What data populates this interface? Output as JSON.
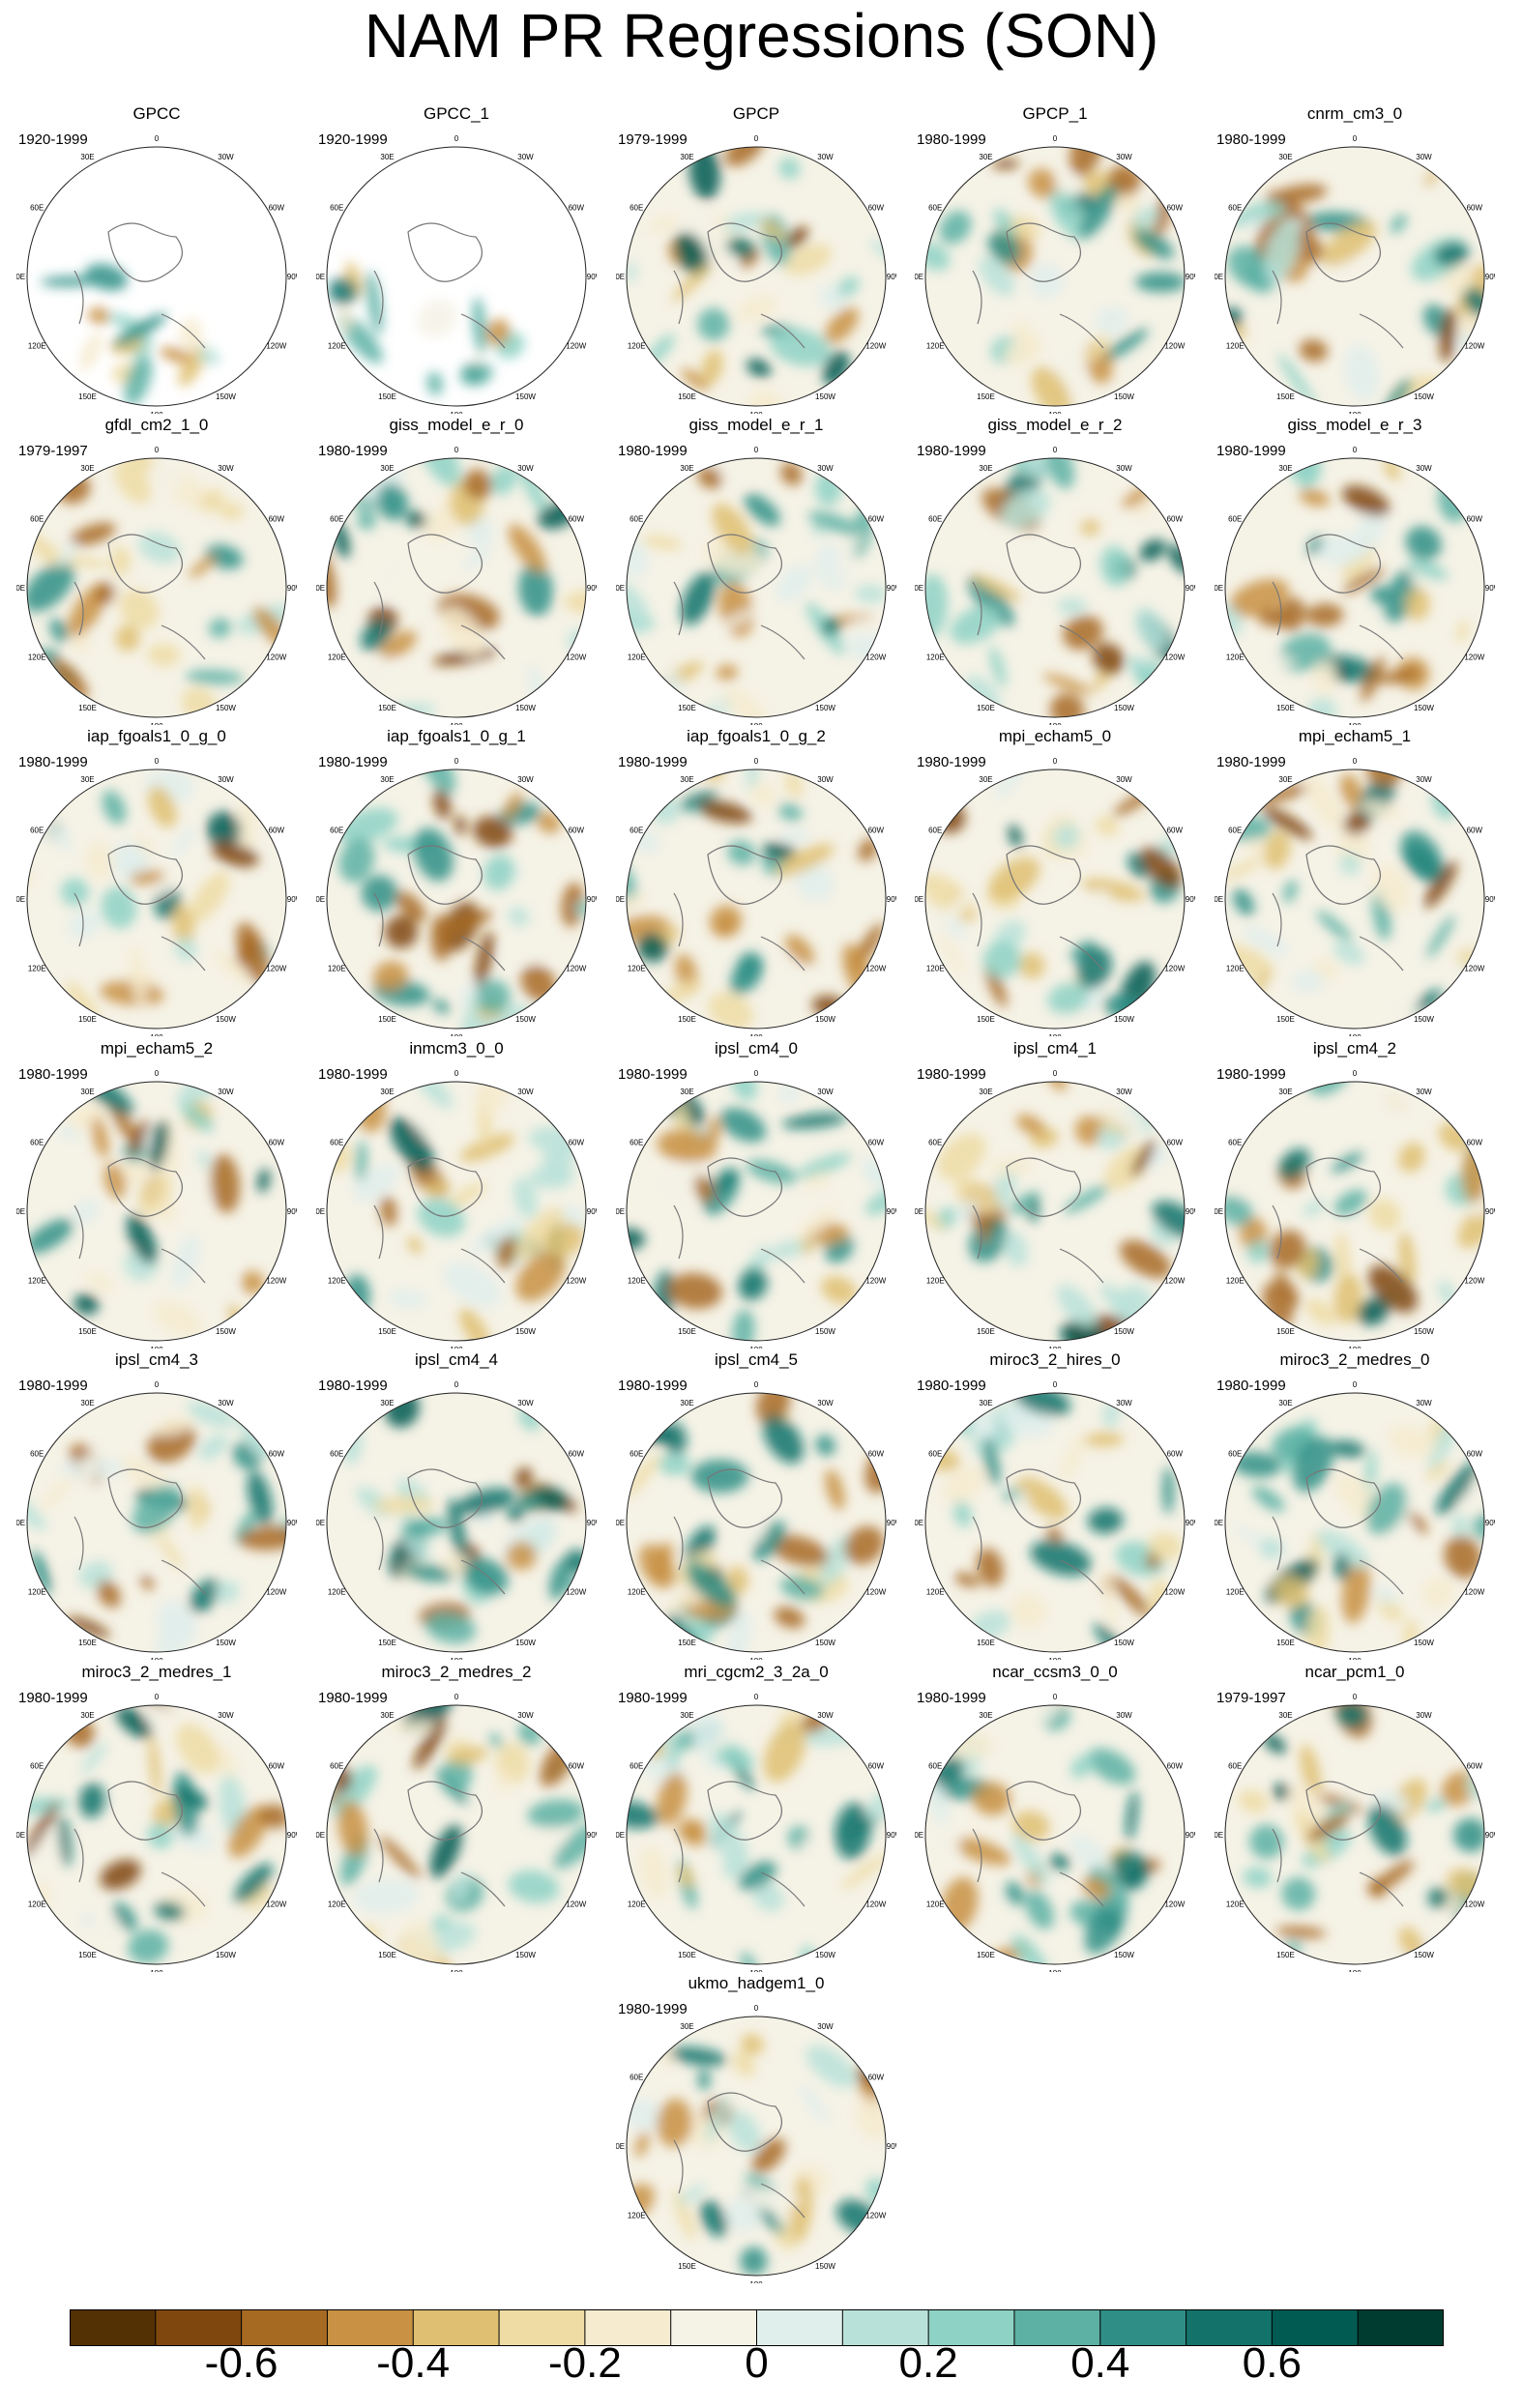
{
  "title": "NAM PR Regressions (SON)",
  "chart_data": {
    "type": "heatmap",
    "projection": "north polar stereographic",
    "longitude_labels": [
      "180",
      "150E",
      "120E",
      "90E",
      "60E",
      "30E",
      "0",
      "30W",
      "60W",
      "90W",
      "120W",
      "150W"
    ],
    "panels": [
      {
        "name": "GPCC",
        "period": "1920-1999",
        "masked": true
      },
      {
        "name": "GPCC_1",
        "period": "1920-1999",
        "masked": true
      },
      {
        "name": "GPCP",
        "period": "1979-1999"
      },
      {
        "name": "GPCP_1",
        "period": "1980-1999"
      },
      {
        "name": "cnrm_cm3_0",
        "period": "1980-1999"
      },
      {
        "name": "gfdl_cm2_1_0",
        "period": "1979-1997"
      },
      {
        "name": "giss_model_e_r_0",
        "period": "1980-1999"
      },
      {
        "name": "giss_model_e_r_1",
        "period": "1980-1999"
      },
      {
        "name": "giss_model_e_r_2",
        "period": "1980-1999"
      },
      {
        "name": "giss_model_e_r_3",
        "period": "1980-1999"
      },
      {
        "name": "iap_fgoals1_0_g_0",
        "period": "1980-1999"
      },
      {
        "name": "iap_fgoals1_0_g_1",
        "period": "1980-1999"
      },
      {
        "name": "iap_fgoals1_0_g_2",
        "period": "1980-1999"
      },
      {
        "name": "mpi_echam5_0",
        "period": "1980-1999"
      },
      {
        "name": "mpi_echam5_1",
        "period": "1980-1999"
      },
      {
        "name": "mpi_echam5_2",
        "period": "1980-1999"
      },
      {
        "name": "inmcm3_0_0",
        "period": "1980-1999"
      },
      {
        "name": "ipsl_cm4_0",
        "period": "1980-1999"
      },
      {
        "name": "ipsl_cm4_1",
        "period": "1980-1999"
      },
      {
        "name": "ipsl_cm4_2",
        "period": "1980-1999"
      },
      {
        "name": "ipsl_cm4_3",
        "period": "1980-1999"
      },
      {
        "name": "ipsl_cm4_4",
        "period": "1980-1999"
      },
      {
        "name": "ipsl_cm4_5",
        "period": "1980-1999"
      },
      {
        "name": "miroc3_2_hires_0",
        "period": "1980-1999"
      },
      {
        "name": "miroc3_2_medres_0",
        "period": "1980-1999"
      },
      {
        "name": "miroc3_2_medres_1",
        "period": "1980-1999"
      },
      {
        "name": "miroc3_2_medres_2",
        "period": "1980-1999"
      },
      {
        "name": "mri_cgcm2_3_2a_0",
        "period": "1980-1999"
      },
      {
        "name": "ncar_ccsm3_0_0",
        "period": "1980-1999"
      },
      {
        "name": "ncar_pcm1_0",
        "period": "1979-1997"
      },
      {
        "name": "ukmo_hadgem1_0",
        "period": "1980-1999"
      }
    ],
    "colorbar": {
      "levels": [
        -0.7,
        -0.6,
        -0.5,
        -0.4,
        -0.3,
        -0.2,
        -0.1,
        0,
        0.1,
        0.2,
        0.3,
        0.4,
        0.5,
        0.6,
        0.7
      ],
      "colors": [
        "#543005",
        "#7f470e",
        "#a76a23",
        "#c89143",
        "#dfbf71",
        "#efdca4",
        "#f6ebcf",
        "#f5f2e6",
        "#e1efec",
        "#b8e2d9",
        "#8ed2c5",
        "#5cb0a4",
        "#2f8f86",
        "#13736b",
        "#025b52",
        "#003c30"
      ],
      "tick_labels": [
        "-0.6",
        "-0.4",
        "-0.2",
        "0",
        "0.2",
        "0.4",
        "0.6"
      ],
      "tick_values": [
        -0.6,
        -0.4,
        -0.2,
        0,
        0.2,
        0.4,
        0.6
      ]
    }
  }
}
